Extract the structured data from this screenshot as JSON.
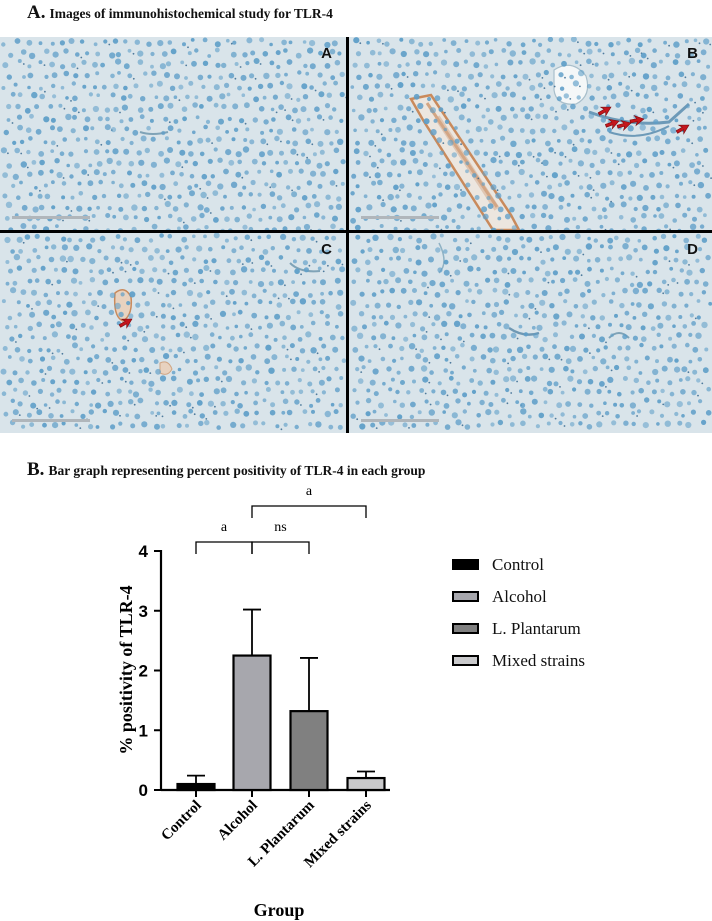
{
  "section_a": {
    "letter": "A.",
    "title": "Images of immunohistochemical study for TLR-4"
  },
  "panels": [
    {
      "letter": "A",
      "arrow_count": 0
    },
    {
      "letter": "B",
      "arrow_count": 4
    },
    {
      "letter": "C",
      "arrow_count": 1
    },
    {
      "letter": "D",
      "arrow_count": 0
    }
  ],
  "section_b": {
    "letter": "B.",
    "title": "Bar graph representing percent positivity of TLR-4 in each group"
  },
  "colors": {
    "tissue": "#d9e4ea",
    "nucleus": "#5e9ec8",
    "stain": "#c98a5c",
    "arrow": "#c4161c"
  },
  "chart_data": {
    "type": "bar",
    "categories": [
      "Control",
      "Alcohol",
      "L. Plantarum",
      "Mixed strains"
    ],
    "values": [
      0.1,
      2.25,
      1.32,
      0.2
    ],
    "errors": [
      0.14,
      0.77,
      0.89,
      0.11
    ],
    "colors": [
      "#000000",
      "#a7a7ad",
      "#808080",
      "#c9c9cb"
    ],
    "xlabel": "Group",
    "ylabel": "% positivity of TLR-4",
    "ylim": [
      0,
      4
    ],
    "yticks": [
      0,
      1,
      2,
      3,
      4
    ],
    "legend": [
      "Control",
      "Alcohol",
      "L. Plantarum",
      "Mixed strains"
    ],
    "legend_position": "right",
    "significance": [
      {
        "from": 1,
        "to": 0,
        "label": "a"
      },
      {
        "from": 1,
        "to": 2,
        "label": "ns"
      },
      {
        "from": 1,
        "to": 3,
        "label": "a"
      }
    ]
  }
}
